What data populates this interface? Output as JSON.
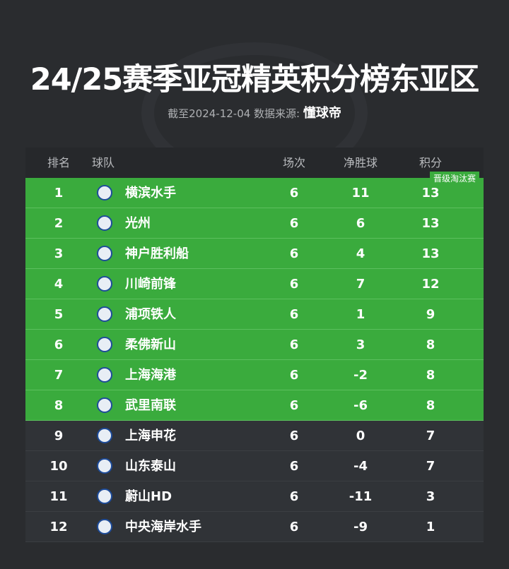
{
  "header": {
    "title": "24/25赛季亚冠精英积分榜东亚区",
    "subtitle": "截至2024-12-04 数据来源:",
    "source": "懂球帝"
  },
  "table": {
    "columns": [
      "排名",
      "球队",
      "场次",
      "净胜球",
      "积分"
    ],
    "badge": "晋级淘汰赛",
    "rows": [
      [
        1,
        "横滨水手",
        6,
        11,
        13
      ],
      [
        2,
        "光州",
        6,
        6,
        13
      ],
      [
        3,
        "神户胜利船",
        6,
        4,
        13
      ],
      [
        4,
        "川崎前锋",
        6,
        7,
        12
      ],
      [
        5,
        "浦项铁人",
        6,
        1,
        9
      ],
      [
        6,
        "柔佛新山",
        6,
        3,
        8
      ],
      [
        7,
        "上海海港",
        6,
        -2,
        8
      ],
      [
        8,
        "武里南联",
        6,
        -6,
        8
      ],
      [
        9,
        "上海申花",
        6,
        0,
        7
      ],
      [
        10,
        "山东泰山",
        6,
        -4,
        7
      ],
      [
        11,
        "蔚山HD",
        6,
        -11,
        3
      ],
      [
        12,
        "中央海岸水手",
        6,
        -9,
        1
      ]
    ]
  }
}
